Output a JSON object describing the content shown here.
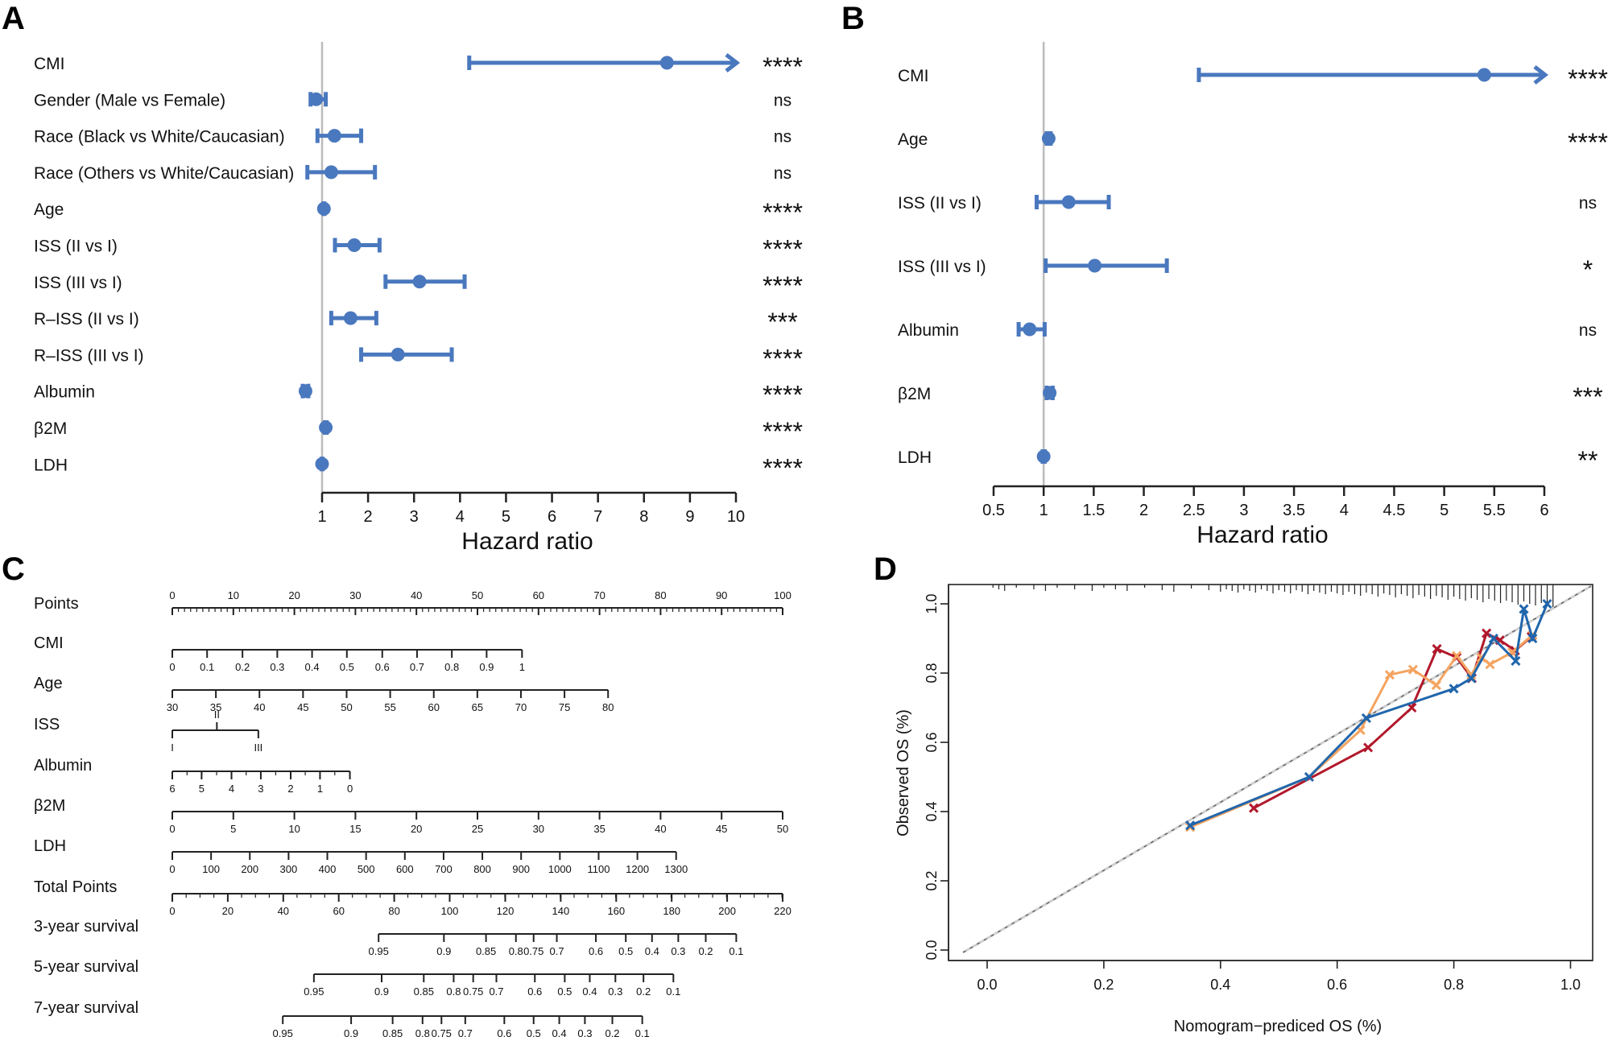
{
  "colors": {
    "accent": "#4A78BE",
    "axis": "#222222",
    "refline": "#BBBBBB",
    "red": "#B2182B",
    "orange": "#F4A460",
    "blue": "#2166AC",
    "text": "#111111"
  },
  "chart_data": [
    {
      "panel": "A",
      "type": "forest",
      "xlabel": "Hazard ratio",
      "xlim": [
        0.7,
        10
      ],
      "ref": 1,
      "xticks": [
        1,
        2,
        3,
        4,
        5,
        6,
        7,
        8,
        9,
        10
      ],
      "rows": [
        {
          "label": "CMI",
          "hr": 8.5,
          "lo": 4.2,
          "hi": 10.0,
          "arrow": true,
          "sig": "****"
        },
        {
          "label": "Gender (Male vs Female)",
          "hr": 0.87,
          "lo": 0.75,
          "hi": 1.08,
          "sig": "ns"
        },
        {
          "label": "Race (Black vs White/Caucasian)",
          "hr": 1.27,
          "lo": 0.9,
          "hi": 1.85,
          "sig": "ns"
        },
        {
          "label": "Race (Others vs White/Caucasian)",
          "hr": 1.2,
          "lo": 0.68,
          "hi": 2.15,
          "sig": "ns"
        },
        {
          "label": "Age",
          "hr": 1.04,
          "lo": 1.03,
          "hi": 1.05,
          "sig": "****"
        },
        {
          "label": "ISS (II vs I)",
          "hr": 1.7,
          "lo": 1.28,
          "hi": 2.25,
          "sig": "****"
        },
        {
          "label": "ISS (III vs I)",
          "hr": 3.12,
          "lo": 2.38,
          "hi": 4.1,
          "sig": "****"
        },
        {
          "label": "R–ISS (II vs I)",
          "hr": 1.62,
          "lo": 1.2,
          "hi": 2.18,
          "sig": "***"
        },
        {
          "label": "R–ISS (III vs I)",
          "hr": 2.65,
          "lo": 1.85,
          "hi": 3.82,
          "sig": "****"
        },
        {
          "label": "Albumin",
          "hr": 0.64,
          "lo": 0.58,
          "hi": 0.7,
          "sig": "****"
        },
        {
          "label": "β2M",
          "hr": 1.08,
          "lo": 1.06,
          "hi": 1.1,
          "sig": "****"
        },
        {
          "label": "LDH",
          "hr": 1.0,
          "lo": 0.99,
          "hi": 1.01,
          "sig": "****"
        }
      ]
    },
    {
      "panel": "B",
      "type": "forest",
      "xlabel": "Hazard ratio",
      "xlim": [
        0.5,
        6
      ],
      "ref": 1,
      "xticks": [
        0.5,
        1,
        1.5,
        2,
        2.5,
        3,
        3.5,
        4,
        4.5,
        5,
        5.5,
        6
      ],
      "rows": [
        {
          "label": "CMI",
          "hr": 5.4,
          "lo": 2.55,
          "hi": 6.0,
          "arrow": true,
          "sig": "****"
        },
        {
          "label": "Age",
          "hr": 1.05,
          "lo": 1.03,
          "hi": 1.07,
          "sig": "****"
        },
        {
          "label": "ISS (II vs I)",
          "hr": 1.25,
          "lo": 0.93,
          "hi": 1.65,
          "sig": "ns"
        },
        {
          "label": "ISS (III vs I)",
          "hr": 1.51,
          "lo": 1.02,
          "hi": 2.23,
          "sig": "*"
        },
        {
          "label": "Albumin",
          "hr": 0.86,
          "lo": 0.75,
          "hi": 1.01,
          "sig": "ns"
        },
        {
          "label": "β2M",
          "hr": 1.06,
          "lo": 1.03,
          "hi": 1.09,
          "sig": "***"
        },
        {
          "label": "LDH",
          "hr": 1.0,
          "lo": 0.99,
          "hi": 1.01,
          "sig": "**"
        }
      ]
    },
    {
      "panel": "C",
      "type": "nomogram",
      "rows": [
        {
          "label": "Points",
          "ticks": [
            {
              "v": 0,
              "t": "0"
            },
            {
              "v": 10,
              "t": "10"
            },
            {
              "v": 20,
              "t": "20"
            },
            {
              "v": 30,
              "t": "30"
            },
            {
              "v": 40,
              "t": "40"
            },
            {
              "v": 50,
              "t": "50"
            },
            {
              "v": 60,
              "t": "60"
            },
            {
              "v": 70,
              "t": "70"
            },
            {
              "v": 80,
              "t": "80"
            },
            {
              "v": 90,
              "t": "90"
            },
            {
              "v": 100,
              "t": "100"
            }
          ],
          "minor": 1,
          "above": true
        },
        {
          "label": "CMI",
          "ticks": [
            {
              "v": 0,
              "t": "0"
            },
            {
              "v": 5.7,
              "t": "0.1"
            },
            {
              "v": 11.5,
              "t": "0.2"
            },
            {
              "v": 17.2,
              "t": "0.3"
            },
            {
              "v": 22.9,
              "t": "0.4"
            },
            {
              "v": 28.6,
              "t": "0.5"
            },
            {
              "v": 34.4,
              "t": "0.6"
            },
            {
              "v": 40.1,
              "t": "0.7"
            },
            {
              "v": 45.8,
              "t": "0.8"
            },
            {
              "v": 51.5,
              "t": "0.9"
            },
            {
              "v": 57.3,
              "t": "1"
            }
          ]
        },
        {
          "label": "Age",
          "ticks": [
            {
              "v": 0,
              "t": "30"
            },
            {
              "v": 7.14,
              "t": "35"
            },
            {
              "v": 14.28,
              "t": "40"
            },
            {
              "v": 21.42,
              "t": "45"
            },
            {
              "v": 28.56,
              "t": "50"
            },
            {
              "v": 35.7,
              "t": "55"
            },
            {
              "v": 42.84,
              "t": "60"
            },
            {
              "v": 49.98,
              "t": "65"
            },
            {
              "v": 57.12,
              "t": "70"
            },
            {
              "v": 64.26,
              "t": "75"
            },
            {
              "v": 71.4,
              "t": "80"
            }
          ]
        },
        {
          "label": "ISS",
          "ticks": [
            {
              "v": 0,
              "t": "I"
            },
            {
              "v": 7.3,
              "t": "II",
              "up": true
            },
            {
              "v": 14.1,
              "t": "III"
            }
          ]
        },
        {
          "label": "Albumin",
          "ticks": [
            {
              "v": 0,
              "t": "6"
            },
            {
              "v": 4.8,
              "t": "5"
            },
            {
              "v": 9.7,
              "t": "4"
            },
            {
              "v": 14.5,
              "t": "3"
            },
            {
              "v": 19.4,
              "t": "2"
            },
            {
              "v": 24.2,
              "t": "1"
            },
            {
              "v": 29.1,
              "t": "0"
            }
          ],
          "minor": 2.42
        },
        {
          "label": "β2M",
          "ticks": [
            {
              "v": 0,
              "t": "0"
            },
            {
              "v": 10,
              "t": "5"
            },
            {
              "v": 20,
              "t": "10"
            },
            {
              "v": 30,
              "t": "15"
            },
            {
              "v": 40,
              "t": "20"
            },
            {
              "v": 50,
              "t": "25"
            },
            {
              "v": 60,
              "t": "30"
            },
            {
              "v": 70,
              "t": "35"
            },
            {
              "v": 80,
              "t": "40"
            },
            {
              "v": 90,
              "t": "45"
            },
            {
              "v": 100,
              "t": "50"
            }
          ]
        },
        {
          "label": "LDH",
          "ticks": [
            {
              "v": 0,
              "t": "0"
            },
            {
              "v": 6.35,
              "t": "100"
            },
            {
              "v": 12.7,
              "t": "200"
            },
            {
              "v": 19.05,
              "t": "300"
            },
            {
              "v": 25.4,
              "t": "400"
            },
            {
              "v": 31.75,
              "t": "500"
            },
            {
              "v": 38.1,
              "t": "600"
            },
            {
              "v": 44.45,
              "t": "700"
            },
            {
              "v": 50.8,
              "t": "800"
            },
            {
              "v": 57.15,
              "t": "900"
            },
            {
              "v": 63.5,
              "t": "1000"
            },
            {
              "v": 69.85,
              "t": "1100"
            },
            {
              "v": 76.2,
              "t": "1200"
            },
            {
              "v": 82.55,
              "t": "1300"
            }
          ]
        },
        {
          "label": "Total Points",
          "ticks": [
            {
              "v": 0,
              "t": "0"
            },
            {
              "v": 9.09,
              "t": "20"
            },
            {
              "v": 18.18,
              "t": "40"
            },
            {
              "v": 27.27,
              "t": "60"
            },
            {
              "v": 36.36,
              "t": "80"
            },
            {
              "v": 45.45,
              "t": "100"
            },
            {
              "v": 54.55,
              "t": "120"
            },
            {
              "v": 63.64,
              "t": "140"
            },
            {
              "v": 72.73,
              "t": "160"
            },
            {
              "v": 81.82,
              "t": "180"
            },
            {
              "v": 90.91,
              "t": "200"
            },
            {
              "v": 100,
              "t": "220"
            }
          ],
          "minor": 2.27
        },
        {
          "label": "3-year survival",
          "ticks": [
            {
              "v": 33.8,
              "t": "0.95"
            },
            {
              "v": 44.5,
              "t": "0.9"
            },
            {
              "v": 51.4,
              "t": "0.85"
            },
            {
              "v": 56.3,
              "t": "0.8"
            },
            {
              "v": 59.2,
              "t": "0.75"
            },
            {
              "v": 63.0,
              "t": "0.7"
            },
            {
              "v": 69.4,
              "t": "0.6"
            },
            {
              "v": 74.3,
              "t": "0.5"
            },
            {
              "v": 78.6,
              "t": "0.4"
            },
            {
              "v": 82.9,
              "t": "0.3"
            },
            {
              "v": 87.4,
              "t": "0.2"
            },
            {
              "v": 92.4,
              "t": "0.1"
            }
          ]
        },
        {
          "label": "5-year survival",
          "ticks": [
            {
              "v": 23.2,
              "t": "0.95"
            },
            {
              "v": 34.3,
              "t": "0.9"
            },
            {
              "v": 41.2,
              "t": "0.85"
            },
            {
              "v": 46.1,
              "t": "0.8"
            },
            {
              "v": 49.3,
              "t": "0.75"
            },
            {
              "v": 53.1,
              "t": "0.7"
            },
            {
              "v": 59.4,
              "t": "0.6"
            },
            {
              "v": 64.3,
              "t": "0.5"
            },
            {
              "v": 68.4,
              "t": "0.4"
            },
            {
              "v": 72.6,
              "t": "0.3"
            },
            {
              "v": 77.2,
              "t": "0.2"
            },
            {
              "v": 82.1,
              "t": "0.1"
            }
          ]
        },
        {
          "label": "7-year survival",
          "ticks": [
            {
              "v": 18.1,
              "t": "0.95"
            },
            {
              "v": 29.3,
              "t": "0.9"
            },
            {
              "v": 36.1,
              "t": "0.85"
            },
            {
              "v": 41.0,
              "t": "0.8"
            },
            {
              "v": 44.1,
              "t": "0.75"
            },
            {
              "v": 48.0,
              "t": "0.7"
            },
            {
              "v": 54.4,
              "t": "0.6"
            },
            {
              "v": 59.2,
              "t": "0.5"
            },
            {
              "v": 63.4,
              "t": "0.4"
            },
            {
              "v": 67.6,
              "t": "0.3"
            },
            {
              "v": 72.1,
              "t": "0.2"
            },
            {
              "v": 77.0,
              "t": "0.1"
            }
          ]
        }
      ]
    },
    {
      "panel": "D",
      "type": "line",
      "xlabel": "Nomogram−prediced OS (%)",
      "ylabel": "Observed OS (%)",
      "xlim": [
        -0.04,
        1.04
      ],
      "ylim": [
        -0.04,
        1.04
      ],
      "xticks": [
        "0.0",
        "0.2",
        "0.4",
        "0.6",
        "0.8",
        "1.0"
      ],
      "yticks": [
        "0.0",
        "0.2",
        "0.4",
        "0.6",
        "0.8",
        "1.0"
      ],
      "rug": [
        0.01,
        0.02,
        0.03,
        0.05,
        0.08,
        0.1,
        0.12,
        0.15,
        0.18,
        0.2,
        0.22,
        0.24,
        0.27,
        0.3,
        0.32,
        0.35,
        0.38,
        0.4,
        0.41,
        0.42,
        0.43,
        0.44,
        0.45,
        0.46,
        0.47,
        0.48,
        0.49,
        0.5,
        0.51,
        0.52,
        0.53,
        0.54,
        0.55,
        0.56,
        0.57,
        0.58,
        0.59,
        0.6,
        0.61,
        0.62,
        0.63,
        0.64,
        0.65,
        0.66,
        0.67,
        0.68,
        0.69,
        0.7,
        0.71,
        0.72,
        0.73,
        0.74,
        0.75,
        0.76,
        0.77,
        0.78,
        0.79,
        0.8,
        0.81,
        0.82,
        0.83,
        0.84,
        0.85,
        0.86,
        0.87,
        0.88,
        0.89,
        0.9,
        0.91,
        0.92,
        0.93,
        0.94,
        0.95,
        0.96,
        0.97
      ],
      "series": [
        {
          "name": "red",
          "x": [
            0.457,
            0.653,
            0.728,
            0.771,
            0.805,
            0.831,
            0.856,
            0.879,
            0.905,
            0.933
          ],
          "y": [
            0.41,
            0.585,
            0.7,
            0.87,
            0.845,
            0.785,
            0.915,
            0.895,
            0.865,
            0.905
          ]
        },
        {
          "name": "orange",
          "x": [
            0.348,
            0.552,
            0.64,
            0.69,
            0.73,
            0.77,
            0.805,
            0.83,
            0.847,
            0.862,
            0.9,
            0.935
          ],
          "y": [
            0.355,
            0.5,
            0.635,
            0.795,
            0.81,
            0.765,
            0.85,
            0.795,
            0.845,
            0.825,
            0.86,
            0.91
          ]
        },
        {
          "name": "blue",
          "x": [
            0.348,
            0.552,
            0.65,
            0.8,
            0.83,
            0.868,
            0.906,
            0.92,
            0.935,
            0.96
          ],
          "y": [
            0.36,
            0.5,
            0.67,
            0.755,
            0.785,
            0.9,
            0.835,
            0.985,
            0.9,
            1.0
          ]
        }
      ]
    }
  ],
  "panel_labels": {
    "a": "A",
    "b": "B",
    "c": "C",
    "d": "D"
  }
}
